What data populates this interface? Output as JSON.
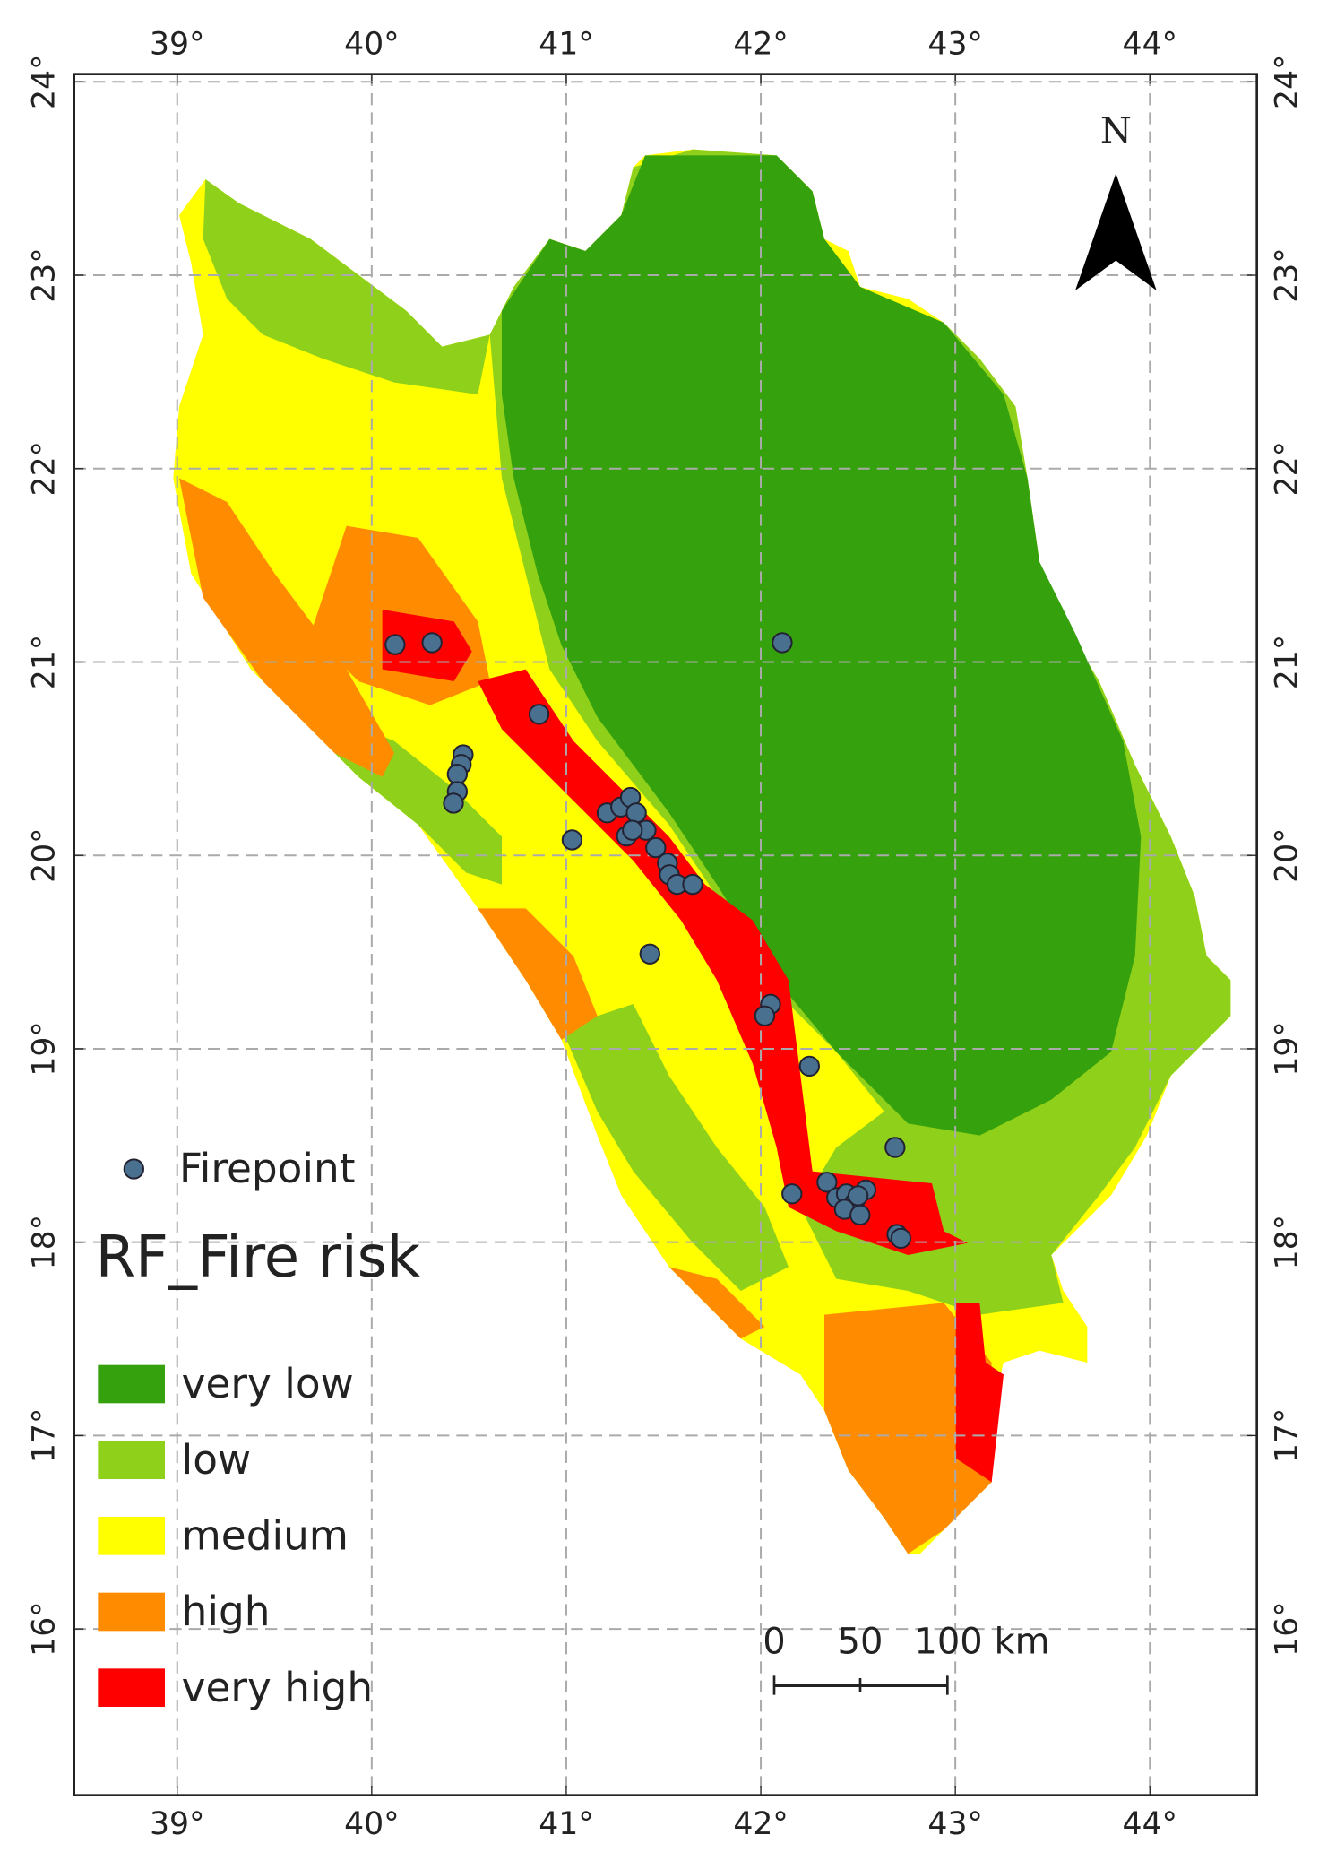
{
  "map": {
    "title": "RF_Fire risk",
    "xlim": [
      38.47,
      44.55
    ],
    "ylim": [
      15.14,
      24.04
    ],
    "xticks": [
      {
        "value": 39,
        "label": "39°"
      },
      {
        "value": 40,
        "label": "40°"
      },
      {
        "value": 41,
        "label": "41°"
      },
      {
        "value": 42,
        "label": "42°"
      },
      {
        "value": 43,
        "label": "43°"
      },
      {
        "value": 44,
        "label": "44°"
      }
    ],
    "yticks": [
      {
        "value": 16,
        "label": "16°"
      },
      {
        "value": 17,
        "label": "17°"
      },
      {
        "value": 18,
        "label": "18°"
      },
      {
        "value": 19,
        "label": "19°"
      },
      {
        "value": 20,
        "label": "20°"
      },
      {
        "value": 21,
        "label": "21°"
      },
      {
        "value": 22,
        "label": "22°"
      },
      {
        "value": 23,
        "label": "23°"
      },
      {
        "value": 24,
        "label": "24°"
      }
    ],
    "grid": true,
    "firepoints": {
      "name": "Firepoint",
      "color": "#4a7090",
      "lon": [
        40.12,
        40.31,
        42.11,
        40.86,
        40.47,
        40.46,
        40.44,
        40.44,
        40.42,
        41.03,
        41.21,
        41.28,
        41.33,
        41.36,
        41.41,
        41.31,
        41.34,
        41.46,
        41.52,
        41.53,
        41.57,
        41.65,
        41.43,
        42.05,
        42.02,
        42.25,
        42.69,
        42.16,
        42.34,
        42.39,
        42.44,
        42.48,
        42.43,
        42.54,
        42.51,
        42.5,
        42.7,
        42.72
      ],
      "lat": [
        21.09,
        21.1,
        21.1,
        20.73,
        20.52,
        20.47,
        20.42,
        20.33,
        20.27,
        20.08,
        20.22,
        20.25,
        20.3,
        20.22,
        20.13,
        20.1,
        20.13,
        20.04,
        19.96,
        19.9,
        19.85,
        19.85,
        19.49,
        19.23,
        19.17,
        18.91,
        18.49,
        18.25,
        18.31,
        18.23,
        18.25,
        18.2,
        18.17,
        18.27,
        18.14,
        18.24,
        18.04,
        18.02
      ]
    },
    "classes": [
      {
        "name": "very low",
        "color": "#34a10d"
      },
      {
        "name": "low",
        "color": "#8fd11a"
      },
      {
        "name": "medium",
        "color": "#ffff00"
      },
      {
        "name": "high",
        "color": "#ff8c00"
      },
      {
        "name": "very high",
        "color": "#ff0000"
      }
    ],
    "scale_bar": [
      "0",
      "50",
      "100 km"
    ],
    "north": "N"
  }
}
